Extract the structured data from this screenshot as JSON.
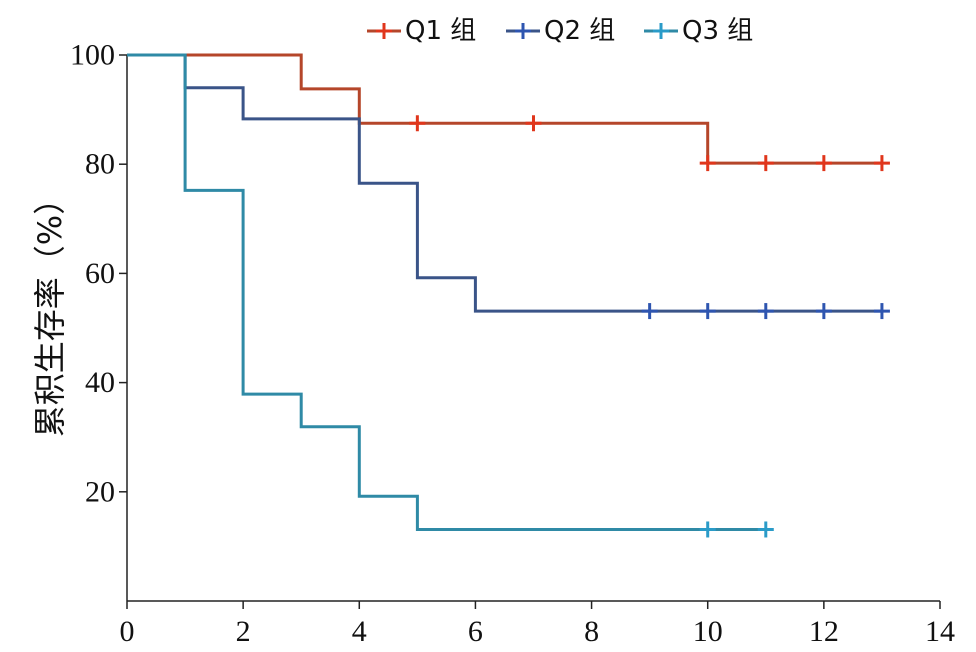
{
  "chart_data": {
    "type": "line",
    "title": "",
    "xlabel": "",
    "ylabel": "累积生存率（%）",
    "xlim": [
      0,
      14
    ],
    "ylim": [
      0,
      100
    ],
    "xticks": [
      0,
      2,
      4,
      6,
      8,
      10,
      12,
      14
    ],
    "yticks": [
      20,
      40,
      60,
      80,
      100
    ],
    "grid": false,
    "legend_position": "top",
    "step": true,
    "series": [
      {
        "name": "Q1 组",
        "color": "#b5462a",
        "marker_color": "#e0361c",
        "points": [
          [
            0,
            100
          ],
          [
            3,
            100
          ],
          [
            3,
            93.8
          ],
          [
            4,
            93.8
          ],
          [
            4,
            87.5
          ],
          [
            10,
            87.5
          ],
          [
            10,
            80.2
          ],
          [
            13,
            80.2
          ]
        ],
        "censored": [
          [
            5,
            87.5
          ],
          [
            7,
            87.5
          ],
          [
            10,
            80.2
          ],
          [
            11,
            80.2
          ],
          [
            12,
            80.2
          ],
          [
            13,
            80.2
          ]
        ]
      },
      {
        "name": "Q2 组",
        "color": "#3a5488",
        "marker_color": "#2e55b0",
        "points": [
          [
            0,
            100
          ],
          [
            1,
            100
          ],
          [
            1,
            94
          ],
          [
            2,
            94
          ],
          [
            2,
            88.3
          ],
          [
            4,
            88.3
          ],
          [
            4,
            76.5
          ],
          [
            5,
            76.5
          ],
          [
            5,
            59.2
          ],
          [
            6,
            59.2
          ],
          [
            6,
            53.1
          ],
          [
            13,
            53.1
          ]
        ],
        "censored": [
          [
            9,
            53.1
          ],
          [
            10,
            53.1
          ],
          [
            11,
            53.1
          ],
          [
            12,
            53.1
          ],
          [
            13,
            53.1
          ]
        ]
      },
      {
        "name": "Q3 组",
        "color": "#2f8aa6",
        "marker_color": "#2a9bc8",
        "points": [
          [
            0,
            100
          ],
          [
            1,
            100
          ],
          [
            1,
            75.2
          ],
          [
            2,
            75.2
          ],
          [
            2,
            37.9
          ],
          [
            3,
            37.9
          ],
          [
            3,
            31.9
          ],
          [
            4,
            31.9
          ],
          [
            4,
            19.2
          ],
          [
            5,
            19.2
          ],
          [
            5,
            13.1
          ],
          [
            11,
            13.1
          ]
        ],
        "censored": [
          [
            10,
            13.1
          ],
          [
            11,
            13.1
          ]
        ]
      }
    ]
  }
}
